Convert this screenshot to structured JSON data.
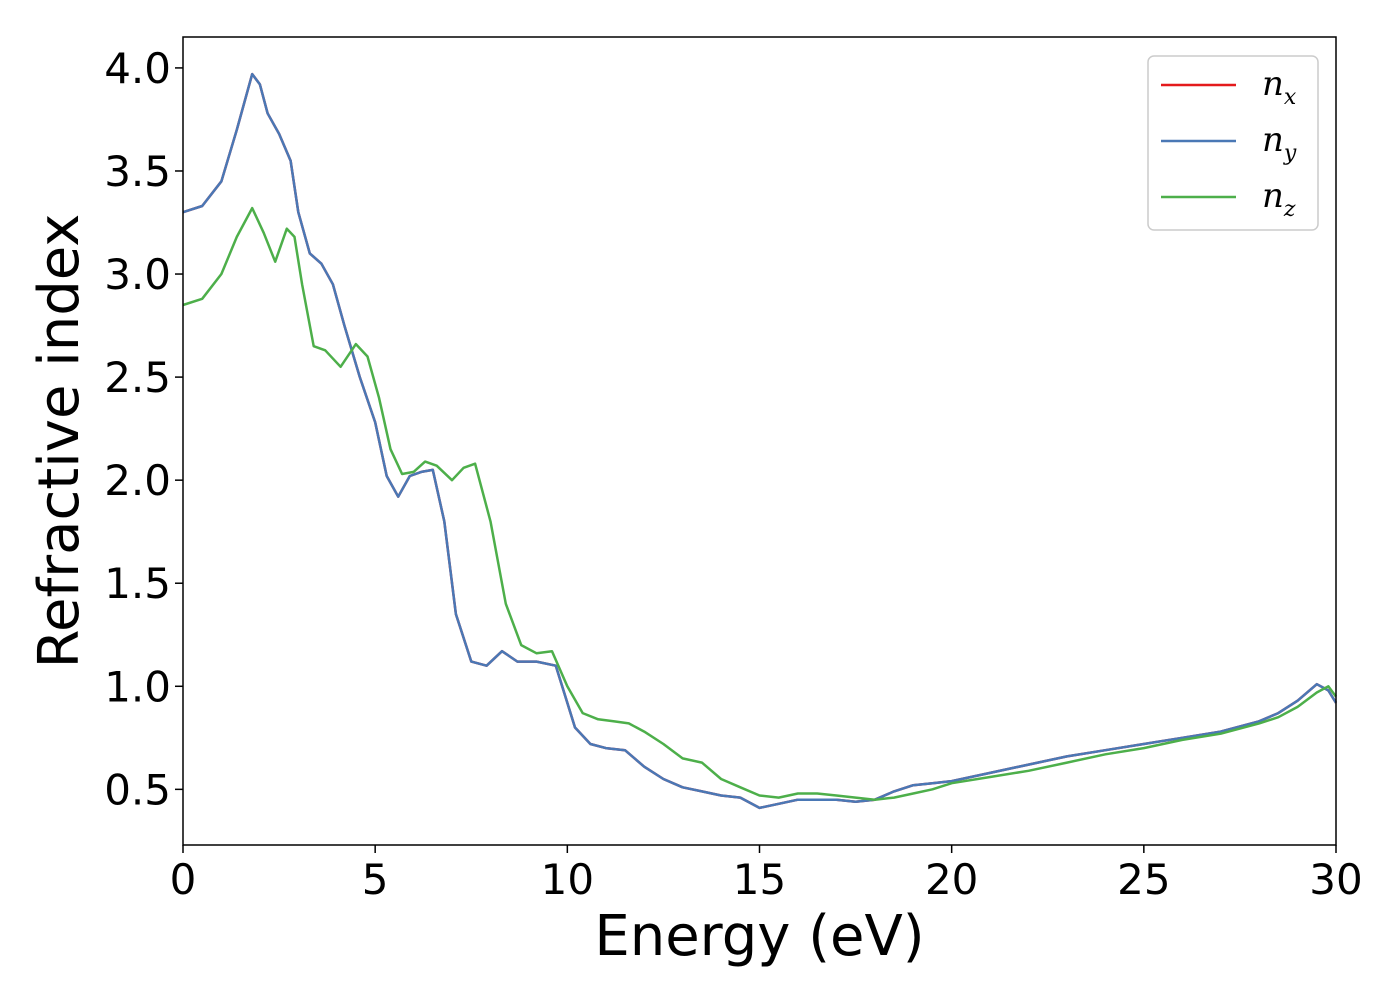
{
  "chart_data": {
    "type": "line",
    "xlabel": "Energy (eV)",
    "ylabel": "Refractive index",
    "xlim": [
      0,
      30
    ],
    "ylim": [
      0.23,
      4.15
    ],
    "xticks": [
      0,
      5,
      10,
      15,
      20,
      25,
      30
    ],
    "xtick_labels": [
      "0",
      "5",
      "10",
      "15",
      "20",
      "25",
      "30"
    ],
    "yticks": [
      0.5,
      1.0,
      1.5,
      2.0,
      2.5,
      3.0,
      3.5,
      4.0
    ],
    "ytick_labels": [
      "0.5",
      "1.0",
      "1.5",
      "2.0",
      "2.5",
      "3.0",
      "3.5",
      "4.0"
    ],
    "grid": false,
    "legend_position": "top-right",
    "series": [
      {
        "name": "n",
        "subscript": "x",
        "color": "#e41a1c",
        "points": [
          [
            0,
            3.3
          ],
          [
            0.5,
            3.33
          ],
          [
            1.0,
            3.45
          ],
          [
            1.4,
            3.7
          ],
          [
            1.8,
            3.97
          ],
          [
            2.0,
            3.92
          ],
          [
            2.2,
            3.78
          ],
          [
            2.5,
            3.68
          ],
          [
            2.8,
            3.55
          ],
          [
            3.0,
            3.3
          ],
          [
            3.3,
            3.1
          ],
          [
            3.6,
            3.05
          ],
          [
            3.9,
            2.95
          ],
          [
            4.2,
            2.75
          ],
          [
            4.6,
            2.5
          ],
          [
            5.0,
            2.28
          ],
          [
            5.3,
            2.02
          ],
          [
            5.6,
            1.92
          ],
          [
            5.9,
            2.02
          ],
          [
            6.2,
            2.04
          ],
          [
            6.5,
            2.05
          ],
          [
            6.8,
            1.8
          ],
          [
            7.1,
            1.35
          ],
          [
            7.5,
            1.12
          ],
          [
            7.9,
            1.1
          ],
          [
            8.3,
            1.17
          ],
          [
            8.7,
            1.12
          ],
          [
            9.2,
            1.12
          ],
          [
            9.7,
            1.1
          ],
          [
            10.2,
            0.8
          ],
          [
            10.6,
            0.72
          ],
          [
            11.0,
            0.7
          ],
          [
            11.5,
            0.69
          ],
          [
            12.0,
            0.61
          ],
          [
            12.5,
            0.55
          ],
          [
            13.0,
            0.51
          ],
          [
            13.5,
            0.49
          ],
          [
            14.0,
            0.47
          ],
          [
            14.5,
            0.46
          ],
          [
            15.0,
            0.41
          ],
          [
            15.5,
            0.43
          ],
          [
            16.0,
            0.45
          ],
          [
            16.5,
            0.45
          ],
          [
            17.0,
            0.45
          ],
          [
            17.5,
            0.44
          ],
          [
            18.0,
            0.45
          ],
          [
            18.5,
            0.49
          ],
          [
            19.0,
            0.52
          ],
          [
            19.5,
            0.53
          ],
          [
            20.0,
            0.54
          ],
          [
            21.0,
            0.58
          ],
          [
            22.0,
            0.62
          ],
          [
            23.0,
            0.66
          ],
          [
            24.0,
            0.69
          ],
          [
            25.0,
            0.72
          ],
          [
            26.0,
            0.75
          ],
          [
            27.0,
            0.78
          ],
          [
            28.0,
            0.83
          ],
          [
            28.5,
            0.87
          ],
          [
            29.0,
            0.93
          ],
          [
            29.5,
            1.01
          ],
          [
            29.8,
            0.98
          ],
          [
            30.0,
            0.92
          ]
        ]
      },
      {
        "name": "n",
        "subscript": "y",
        "color": "#4a78b5",
        "points": [
          [
            0,
            3.3
          ],
          [
            0.5,
            3.33
          ],
          [
            1.0,
            3.45
          ],
          [
            1.4,
            3.7
          ],
          [
            1.8,
            3.97
          ],
          [
            2.0,
            3.92
          ],
          [
            2.2,
            3.78
          ],
          [
            2.5,
            3.68
          ],
          [
            2.8,
            3.55
          ],
          [
            3.0,
            3.3
          ],
          [
            3.3,
            3.1
          ],
          [
            3.6,
            3.05
          ],
          [
            3.9,
            2.95
          ],
          [
            4.2,
            2.75
          ],
          [
            4.6,
            2.5
          ],
          [
            5.0,
            2.28
          ],
          [
            5.3,
            2.02
          ],
          [
            5.6,
            1.92
          ],
          [
            5.9,
            2.02
          ],
          [
            6.2,
            2.04
          ],
          [
            6.5,
            2.05
          ],
          [
            6.8,
            1.8
          ],
          [
            7.1,
            1.35
          ],
          [
            7.5,
            1.12
          ],
          [
            7.9,
            1.1
          ],
          [
            8.3,
            1.17
          ],
          [
            8.7,
            1.12
          ],
          [
            9.2,
            1.12
          ],
          [
            9.7,
            1.1
          ],
          [
            10.2,
            0.8
          ],
          [
            10.6,
            0.72
          ],
          [
            11.0,
            0.7
          ],
          [
            11.5,
            0.69
          ],
          [
            12.0,
            0.61
          ],
          [
            12.5,
            0.55
          ],
          [
            13.0,
            0.51
          ],
          [
            13.5,
            0.49
          ],
          [
            14.0,
            0.47
          ],
          [
            14.5,
            0.46
          ],
          [
            15.0,
            0.41
          ],
          [
            15.5,
            0.43
          ],
          [
            16.0,
            0.45
          ],
          [
            16.5,
            0.45
          ],
          [
            17.0,
            0.45
          ],
          [
            17.5,
            0.44
          ],
          [
            18.0,
            0.45
          ],
          [
            18.5,
            0.49
          ],
          [
            19.0,
            0.52
          ],
          [
            19.5,
            0.53
          ],
          [
            20.0,
            0.54
          ],
          [
            21.0,
            0.58
          ],
          [
            22.0,
            0.62
          ],
          [
            23.0,
            0.66
          ],
          [
            24.0,
            0.69
          ],
          [
            25.0,
            0.72
          ],
          [
            26.0,
            0.75
          ],
          [
            27.0,
            0.78
          ],
          [
            28.0,
            0.83
          ],
          [
            28.5,
            0.87
          ],
          [
            29.0,
            0.93
          ],
          [
            29.5,
            1.01
          ],
          [
            29.8,
            0.98
          ],
          [
            30.0,
            0.92
          ]
        ]
      },
      {
        "name": "n",
        "subscript": "z",
        "color": "#4daf4a",
        "points": [
          [
            0,
            2.85
          ],
          [
            0.5,
            2.88
          ],
          [
            1.0,
            3.0
          ],
          [
            1.4,
            3.18
          ],
          [
            1.8,
            3.32
          ],
          [
            2.1,
            3.2
          ],
          [
            2.4,
            3.06
          ],
          [
            2.7,
            3.22
          ],
          [
            2.9,
            3.18
          ],
          [
            3.1,
            2.95
          ],
          [
            3.4,
            2.65
          ],
          [
            3.7,
            2.63
          ],
          [
            4.1,
            2.55
          ],
          [
            4.5,
            2.66
          ],
          [
            4.8,
            2.6
          ],
          [
            5.1,
            2.4
          ],
          [
            5.4,
            2.15
          ],
          [
            5.7,
            2.03
          ],
          [
            6.0,
            2.04
          ],
          [
            6.3,
            2.09
          ],
          [
            6.6,
            2.07
          ],
          [
            7.0,
            2.0
          ],
          [
            7.3,
            2.06
          ],
          [
            7.6,
            2.08
          ],
          [
            8.0,
            1.8
          ],
          [
            8.4,
            1.4
          ],
          [
            8.8,
            1.2
          ],
          [
            9.2,
            1.16
          ],
          [
            9.6,
            1.17
          ],
          [
            10.0,
            1.0
          ],
          [
            10.4,
            0.87
          ],
          [
            10.8,
            0.84
          ],
          [
            11.2,
            0.83
          ],
          [
            11.6,
            0.82
          ],
          [
            12.0,
            0.78
          ],
          [
            12.5,
            0.72
          ],
          [
            13.0,
            0.65
          ],
          [
            13.5,
            0.63
          ],
          [
            14.0,
            0.55
          ],
          [
            14.5,
            0.51
          ],
          [
            15.0,
            0.47
          ],
          [
            15.5,
            0.46
          ],
          [
            16.0,
            0.48
          ],
          [
            16.5,
            0.48
          ],
          [
            17.0,
            0.47
          ],
          [
            17.5,
            0.46
          ],
          [
            18.0,
            0.45
          ],
          [
            18.5,
            0.46
          ],
          [
            19.0,
            0.48
          ],
          [
            19.5,
            0.5
          ],
          [
            20.0,
            0.53
          ],
          [
            21.0,
            0.56
          ],
          [
            22.0,
            0.59
          ],
          [
            23.0,
            0.63
          ],
          [
            24.0,
            0.67
          ],
          [
            25.0,
            0.7
          ],
          [
            26.0,
            0.74
          ],
          [
            27.0,
            0.77
          ],
          [
            28.0,
            0.82
          ],
          [
            28.5,
            0.85
          ],
          [
            29.0,
            0.9
          ],
          [
            29.5,
            0.97
          ],
          [
            29.8,
            1.0
          ],
          [
            30.0,
            0.95
          ]
        ]
      }
    ]
  }
}
